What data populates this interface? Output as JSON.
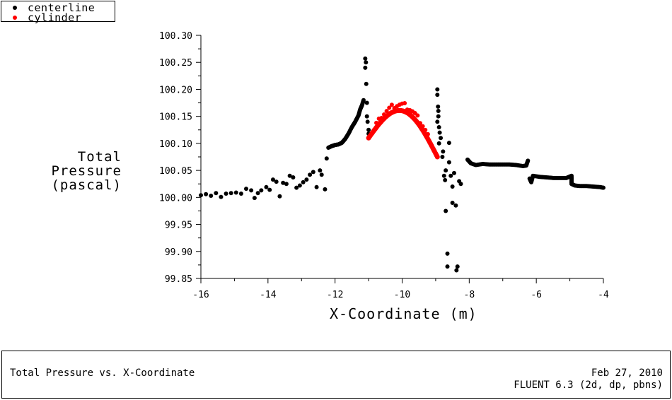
{
  "legend": {
    "items": [
      {
        "label": "centerline",
        "color": "#000000"
      },
      {
        "label": "cylinder",
        "color": "#ff0000"
      }
    ]
  },
  "axes": {
    "ylabel_lines": [
      "Total",
      "Pressure",
      "(pascal)"
    ],
    "xlabel": "X-Coordinate (m)",
    "yticks": [
      "100.30",
      "100.25",
      "100.20",
      "100.15",
      "100.10",
      "100.05",
      "100.00",
      "99.95",
      "99.90",
      "99.85"
    ],
    "xticks": [
      "-16",
      "-14",
      "-12",
      "-10",
      "-8",
      "-6",
      "-4"
    ]
  },
  "footer": {
    "title": "Total Pressure vs. X-Coordinate",
    "date": "Feb 27, 2010",
    "software": "FLUENT 6.3 (2d, dp, pbns)"
  },
  "chart_data": {
    "type": "scatter",
    "title": "Total Pressure vs. X-Coordinate",
    "xlabel": "X-Coordinate (m)",
    "ylabel": "Total Pressure (pascal)",
    "xlim": [
      -16,
      -4
    ],
    "ylim": [
      99.85,
      100.3
    ],
    "xticks": [
      -16,
      -14,
      -12,
      -10,
      -8,
      -6,
      -4
    ],
    "yticks": [
      99.85,
      99.9,
      99.95,
      100.0,
      100.05,
      100.1,
      100.15,
      100.2,
      100.25,
      100.3
    ],
    "grid": false,
    "legend_position": "top-left",
    "series": [
      {
        "name": "centerline",
        "color": "#000000",
        "points": [
          [
            -16.0,
            100.004
          ],
          [
            -15.85,
            100.006
          ],
          [
            -15.7,
            100.003
          ],
          [
            -15.55,
            100.008
          ],
          [
            -15.4,
            100.001
          ],
          [
            -15.25,
            100.007
          ],
          [
            -15.1,
            100.008
          ],
          [
            -14.95,
            100.009
          ],
          [
            -14.8,
            100.007
          ],
          [
            -14.65,
            100.016
          ],
          [
            -14.5,
            100.013
          ],
          [
            -14.4,
            99.999
          ],
          [
            -14.3,
            100.008
          ],
          [
            -14.2,
            100.013
          ],
          [
            -14.05,
            100.019
          ],
          [
            -13.95,
            100.014
          ],
          [
            -13.85,
            100.033
          ],
          [
            -13.75,
            100.029
          ],
          [
            -13.65,
            100.002
          ],
          [
            -13.55,
            100.027
          ],
          [
            -13.45,
            100.025
          ],
          [
            -13.35,
            100.04
          ],
          [
            -13.25,
            100.037
          ],
          [
            -13.15,
            100.018
          ],
          [
            -13.05,
            100.022
          ],
          [
            -12.95,
            100.028
          ],
          [
            -12.85,
            100.033
          ],
          [
            -12.75,
            100.042
          ],
          [
            -12.65,
            100.047
          ],
          [
            -12.55,
            100.019
          ],
          [
            -12.45,
            100.05
          ],
          [
            -12.4,
            100.042
          ],
          [
            -12.3,
            100.015
          ],
          [
            -12.25,
            100.072
          ],
          [
            -12.2,
            100.092
          ],
          [
            -12.1,
            100.095
          ],
          [
            -12.0,
            100.097
          ],
          [
            -11.9,
            100.098
          ],
          [
            -11.8,
            100.101
          ],
          [
            -11.7,
            100.108
          ],
          [
            -11.6,
            100.118
          ],
          [
            -11.5,
            100.13
          ],
          [
            -11.4,
            100.14
          ],
          [
            -11.3,
            100.152
          ],
          [
            -11.25,
            100.163
          ],
          [
            -11.2,
            100.17
          ],
          [
            -11.15,
            100.18
          ],
          [
            -11.1,
            100.257
          ],
          [
            -11.08,
            100.25
          ],
          [
            -11.1,
            100.24
          ],
          [
            -11.07,
            100.21
          ],
          [
            -11.05,
            100.175
          ],
          [
            -11.05,
            100.15
          ],
          [
            -11.03,
            100.14
          ],
          [
            -11.0,
            100.125
          ],
          [
            -11.0,
            100.118
          ],
          [
            -8.95,
            100.2
          ],
          [
            -8.95,
            100.19
          ],
          [
            -8.93,
            100.168
          ],
          [
            -8.92,
            100.16
          ],
          [
            -8.92,
            100.15
          ],
          [
            -8.95,
            100.14
          ],
          [
            -8.9,
            100.13
          ],
          [
            -8.88,
            100.12
          ],
          [
            -8.85,
            100.11
          ],
          [
            -8.9,
            100.1
          ],
          [
            -8.6,
            100.101
          ],
          [
            -8.78,
            100.085
          ],
          [
            -8.8,
            100.075
          ],
          [
            -8.7,
            100.05
          ],
          [
            -8.75,
            100.04
          ],
          [
            -8.72,
            100.032
          ],
          [
            -8.55,
            100.04
          ],
          [
            -8.6,
            100.065
          ],
          [
            -8.45,
            100.045
          ],
          [
            -8.5,
            100.02
          ],
          [
            -8.3,
            100.03
          ],
          [
            -8.25,
            100.025
          ],
          [
            -8.7,
            99.975
          ],
          [
            -8.5,
            99.99
          ],
          [
            -8.4,
            99.985
          ],
          [
            -8.65,
            99.896
          ],
          [
            -8.65,
            99.872
          ],
          [
            -8.35,
            99.872
          ],
          [
            -8.38,
            99.865
          ],
          [
            -8.05,
            100.07
          ],
          [
            -7.95,
            100.063
          ],
          [
            -7.8,
            100.06
          ],
          [
            -7.6,
            100.062
          ],
          [
            -7.4,
            100.061
          ],
          [
            -7.2,
            100.061
          ],
          [
            -7.0,
            100.061
          ],
          [
            -6.8,
            100.061
          ],
          [
            -6.6,
            100.06
          ],
          [
            -6.4,
            100.058
          ],
          [
            -6.3,
            100.059
          ],
          [
            -6.25,
            100.068
          ],
          [
            -6.2,
            100.035
          ],
          [
            -6.1,
            100.04
          ],
          [
            -6.15,
            100.028
          ],
          [
            -5.9,
            100.038
          ],
          [
            -5.7,
            100.037
          ],
          [
            -5.5,
            100.036
          ],
          [
            -5.3,
            100.036
          ],
          [
            -5.1,
            100.036
          ],
          [
            -4.95,
            100.04
          ],
          [
            -4.95,
            100.025
          ],
          [
            -4.85,
            100.022
          ],
          [
            -4.7,
            100.021
          ],
          [
            -4.5,
            100.021
          ],
          [
            -4.3,
            100.02
          ],
          [
            -4.1,
            100.019
          ],
          [
            -4.0,
            100.018
          ]
        ]
      },
      {
        "name": "cylinder",
        "color": "#ff0000",
        "arc": {
          "x_start": -11.0,
          "x_end": -8.95,
          "y_start": 100.11,
          "y_peak": 100.16,
          "y_end": 100.075,
          "peak_x": -10.05,
          "upper_scatter_max": 100.18
        }
      }
    ]
  }
}
